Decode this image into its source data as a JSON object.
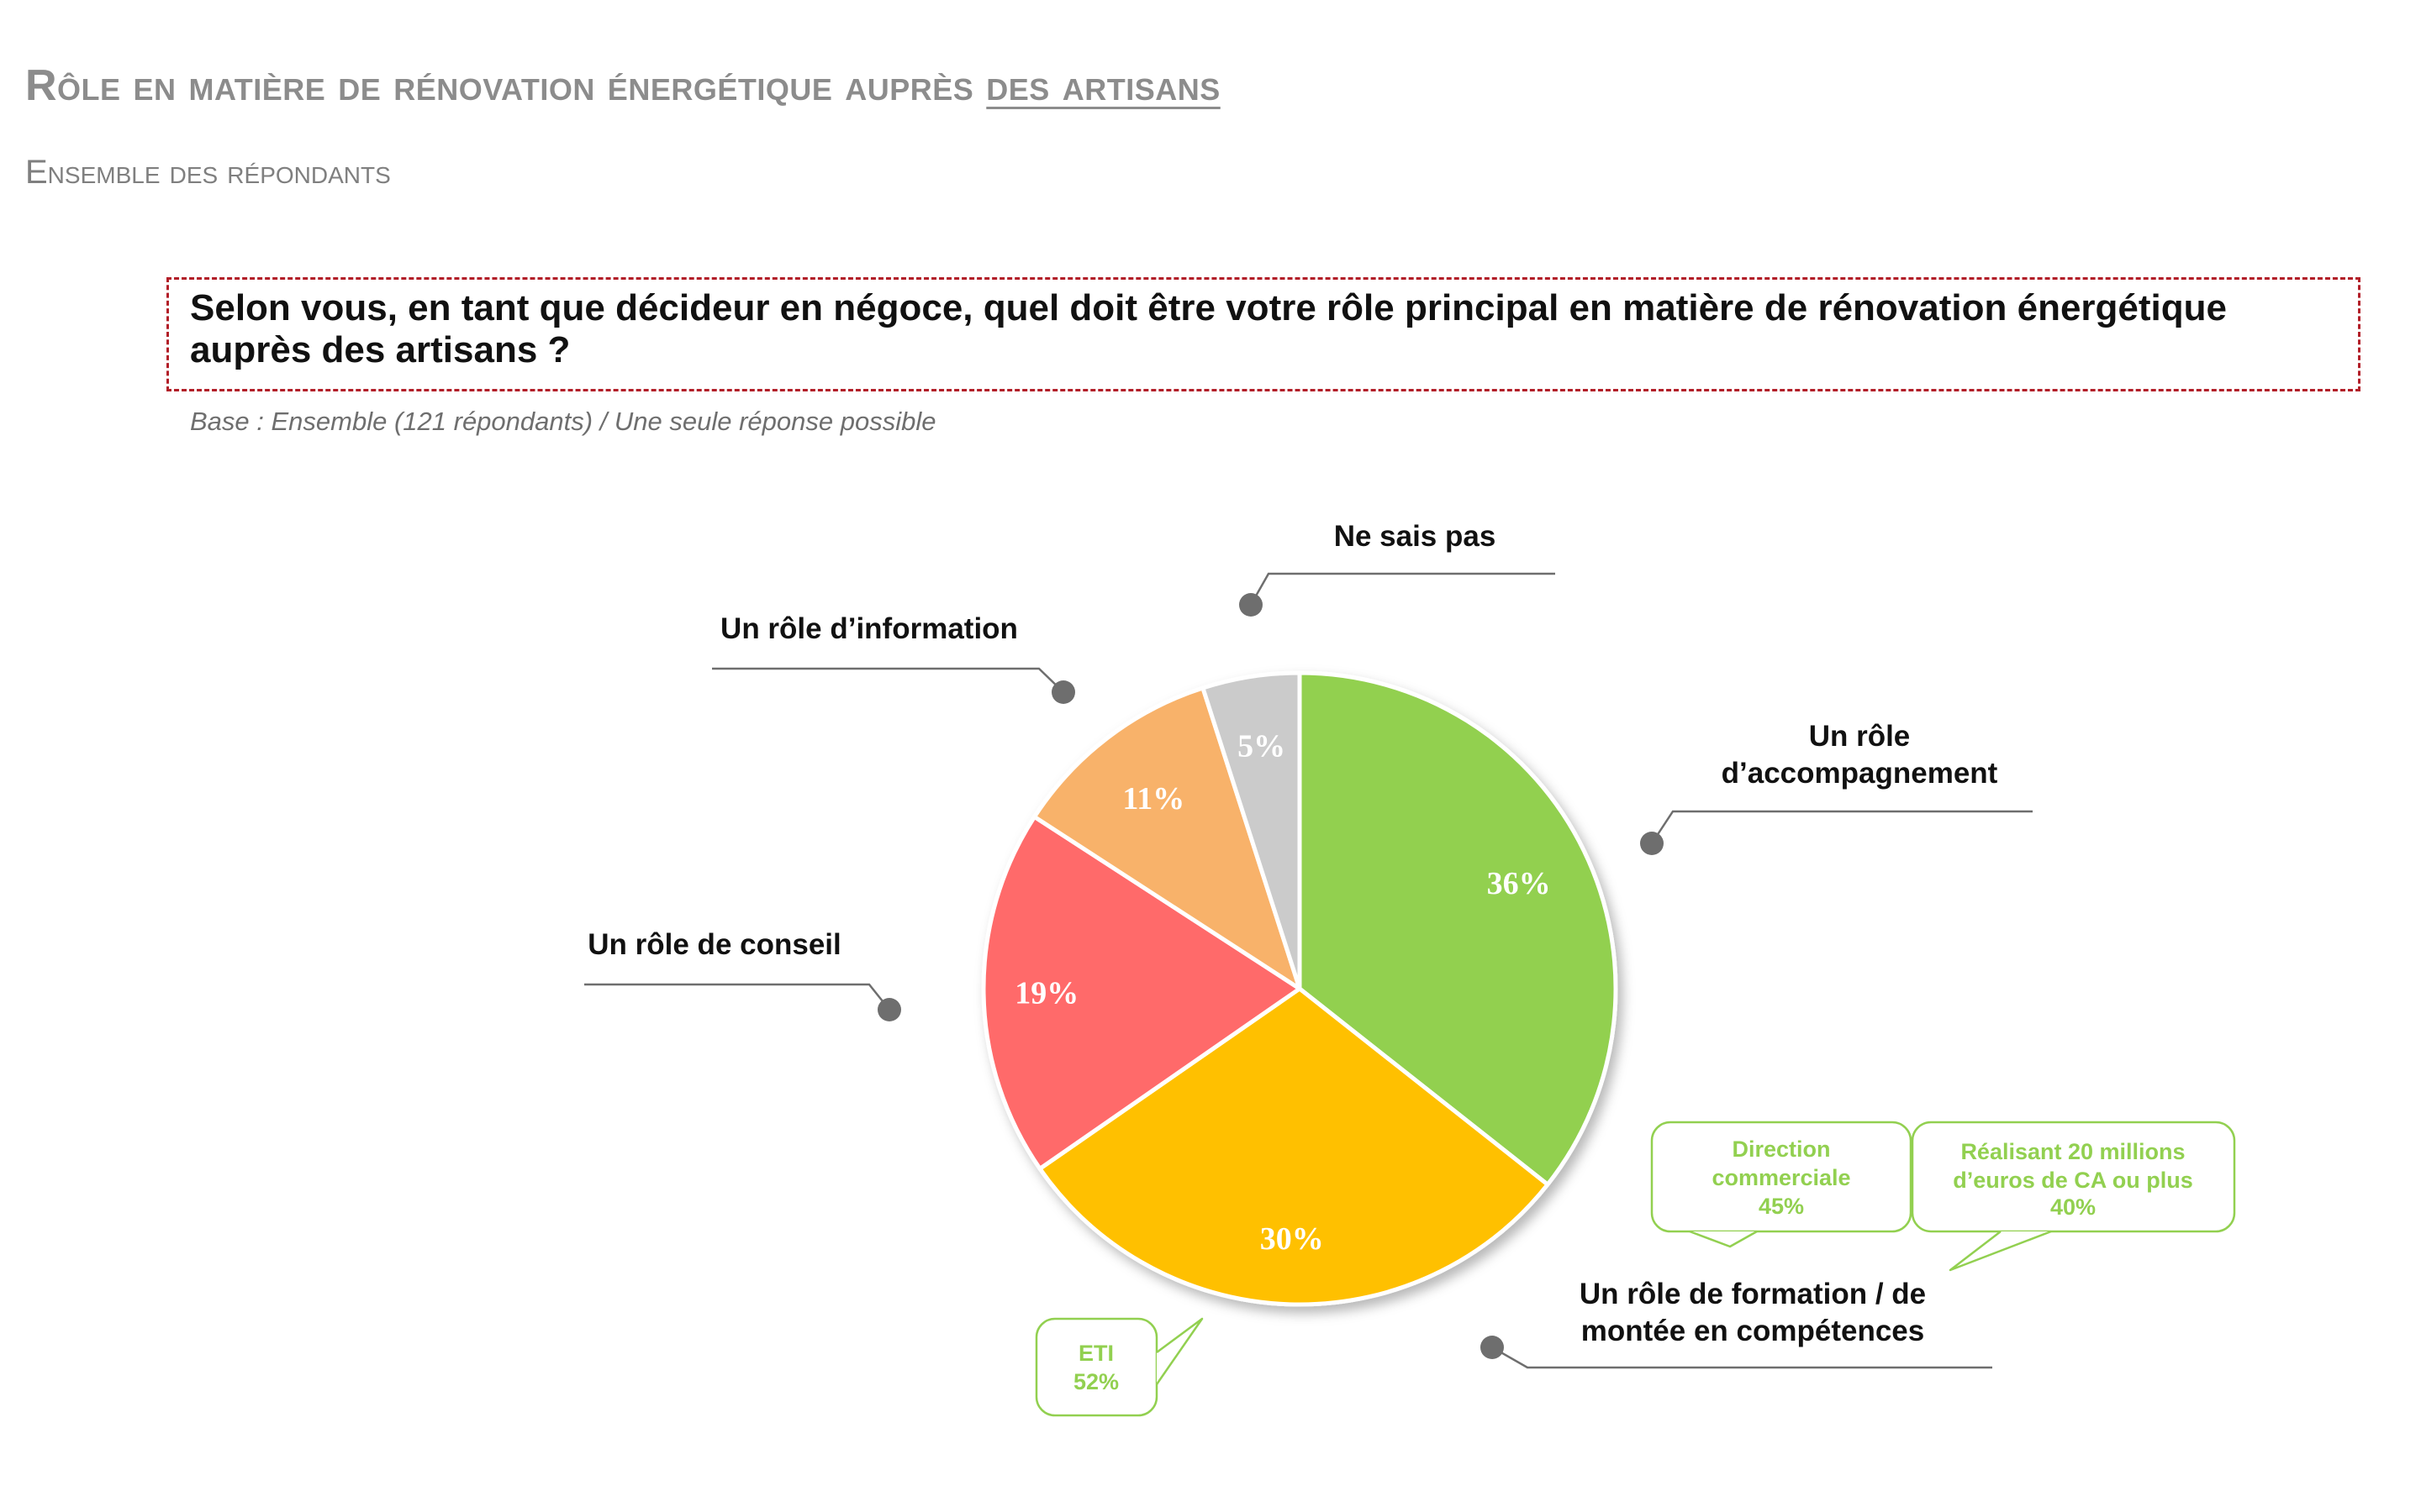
{
  "header": {
    "title_main": "Rôle en matière de rénovation énergétique auprès ",
    "title_underlined": "des artisans",
    "subtitle": "Ensemble des répondants"
  },
  "question": "Selon vous, en tant que décideur en négoce, quel doit être votre rôle principal en matière de rénovation énergétique auprès des artisans ?",
  "base": "Base : Ensemble (121 répondants) / Une seule réponse possible",
  "colors": {
    "accompagnement": "#92d050",
    "formation": "#ffc000",
    "conseil": "#ff6b6b",
    "information": "#f8b26b",
    "ne_sais_pas": "#cbcbcb",
    "note": "#92d050",
    "box_border": "#b21e28"
  },
  "chart_data": {
    "type": "pie",
    "start_angle_deg": 0,
    "direction": "clockwise",
    "slices": [
      {
        "label": "Un rôle d’accompagnement",
        "value": 36,
        "display": "36%",
        "color": "#92d050"
      },
      {
        "label": "Un rôle de formation / de montée en compétences",
        "value": 30,
        "display": "30%",
        "color": "#ffc000"
      },
      {
        "label": "Un rôle de conseil",
        "value": 19,
        "display": "19%",
        "color": "#ff6b6b"
      },
      {
        "label": "Un rôle d’information",
        "value": 11,
        "display": "11%",
        "color": "#f8b26b"
      },
      {
        "label": "Ne sais pas",
        "value": 5,
        "display": "5%",
        "color": "#cbcbcb"
      }
    ],
    "annotations": [
      {
        "slice": "Un rôle d’accompagnement",
        "lines": [
          "Direction",
          "commerciale",
          "45%"
        ]
      },
      {
        "slice": "Un rôle d’accompagnement",
        "lines": [
          "Réalisant 20 millions",
          "d’euros de CA ou plus",
          "40%"
        ]
      },
      {
        "slice": "Un rôle de formation / de montée en compétences",
        "lines": [
          "ETI",
          "52%"
        ]
      }
    ]
  }
}
